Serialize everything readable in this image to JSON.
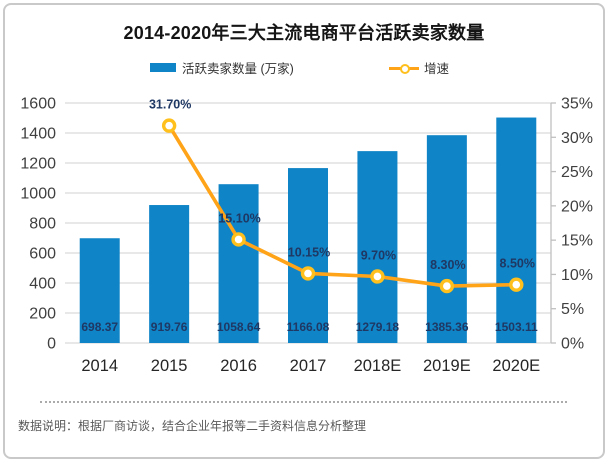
{
  "note": {
    "text": "数据说明：根据厂商访谈，结合企业年报等二手资料信息分析整理"
  },
  "colors": {
    "bar": "#0F84C6",
    "line": "#FFA318",
    "marker_ring": "#FFC01E",
    "marker_fill": "#FFFFFF",
    "grid": "#DADADA",
    "axis_line": "#BFBFBF",
    "tick_label": "#404040",
    "x_label": "#262626",
    "data_label": "#1F3864",
    "title": "#151515",
    "note": "#595959"
  },
  "chart_data": {
    "type": "bar+line",
    "title": "2014-2020年三大主流电商平台活跃卖家数量",
    "categories": [
      "2014",
      "2015",
      "2016",
      "2017",
      "2018E",
      "2019E",
      "2020E"
    ],
    "series": [
      {
        "name": "活跃卖家数量 (万家)",
        "type": "bar",
        "axis": "left",
        "values": [
          698.37,
          919.76,
          1058.64,
          1166.08,
          1279.18,
          1385.36,
          1503.11
        ],
        "value_labels": [
          "698.37",
          "919.76",
          "1058.64",
          "1166.08",
          "1279.18",
          "1385.36",
          "1503.11"
        ]
      },
      {
        "name": "增速",
        "type": "line",
        "axis": "right",
        "values": [
          null,
          0.317,
          0.151,
          0.1015,
          0.097,
          0.083,
          0.085
        ],
        "value_labels": [
          "",
          "31.70%",
          "15.10%",
          "10.15%",
          "9.70%",
          "8.30%",
          "8.50%"
        ]
      }
    ],
    "left_axis": {
      "min": 0,
      "max": 1600,
      "step": 200,
      "tick_labels": [
        "0",
        "200",
        "400",
        "600",
        "800",
        "1000",
        "1200",
        "1400",
        "1600"
      ]
    },
    "right_axis": {
      "min": 0,
      "max": 0.35,
      "step": 0.05,
      "tick_labels": [
        "0%",
        "5%",
        "10%",
        "15%",
        "20%",
        "25%",
        "30%",
        "35%"
      ]
    },
    "grid": true,
    "legend_position": "top"
  }
}
